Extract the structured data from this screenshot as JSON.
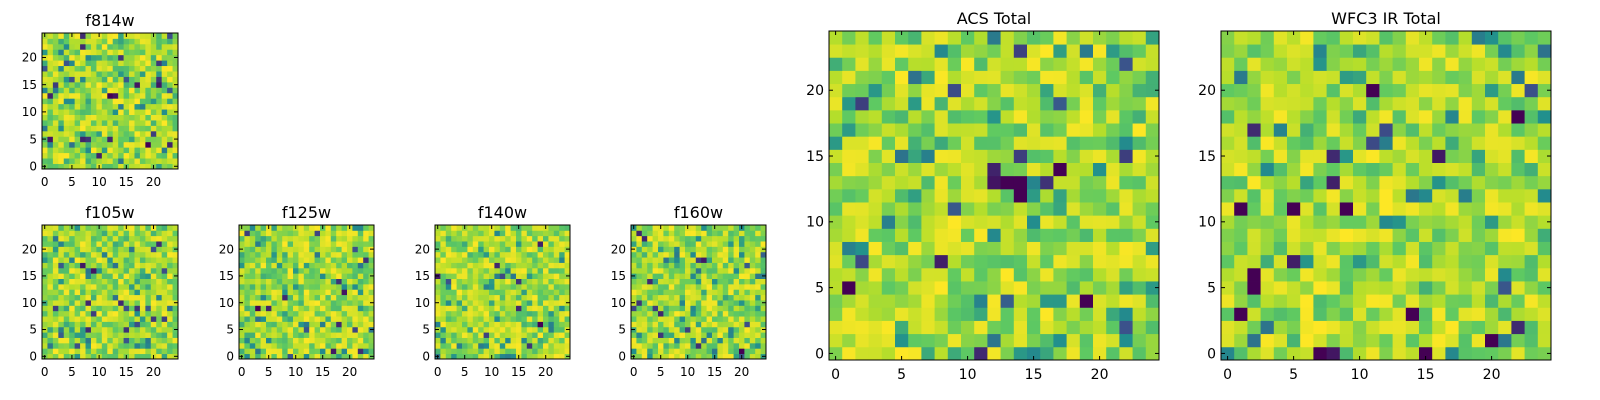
{
  "chart_data": {
    "type": "heatmap",
    "colormap": "viridis",
    "colormap_colors": [
      "#440154",
      "#3b528b",
      "#21908d",
      "#5ec962",
      "#b5de2b",
      "#fde725"
    ],
    "grid": false,
    "panels": [
      {
        "title": "f814w",
        "xlim": [
          0,
          24
        ],
        "ylim": [
          0,
          24
        ],
        "xticks": [
          0,
          5,
          10,
          15,
          20
        ],
        "yticks": [
          0,
          5,
          10,
          15,
          20
        ],
        "pixels": 25,
        "seed": 11,
        "hotspots": [
          {
            "x": 12,
            "y": 13,
            "v": 0.0
          },
          {
            "x": 13,
            "y": 13,
            "v": 0.05
          },
          {
            "x": 19,
            "y": 4,
            "v": 0.0
          },
          {
            "x": 18,
            "y": 4,
            "v": 0.95
          },
          {
            "x": 1,
            "y": 5,
            "v": 0.05
          }
        ]
      },
      {
        "title": "f105w",
        "xlim": [
          0,
          24
        ],
        "ylim": [
          0,
          24
        ],
        "xticks": [
          0,
          5,
          10,
          15,
          20
        ],
        "yticks": [
          0,
          5,
          10,
          15,
          20
        ],
        "pixels": 25,
        "seed": 23,
        "hotspots": [
          {
            "x": 9,
            "y": 16,
            "v": 0.05
          },
          {
            "x": 14,
            "y": 10,
            "v": 0.1
          },
          {
            "x": 8,
            "y": 5,
            "v": 0.1
          }
        ]
      },
      {
        "title": "f125w",
        "xlim": [
          0,
          24
        ],
        "ylim": [
          0,
          24
        ],
        "xticks": [
          0,
          5,
          10,
          15,
          20
        ],
        "yticks": [
          0,
          5,
          10,
          15,
          20
        ],
        "pixels": 25,
        "seed": 37,
        "hotspots": [
          {
            "x": 3,
            "y": 9,
            "v": 0.0
          },
          {
            "x": 8,
            "y": 11,
            "v": 0.1
          }
        ]
      },
      {
        "title": "f140w",
        "xlim": [
          0,
          24
        ],
        "ylim": [
          0,
          24
        ],
        "xticks": [
          0,
          5,
          10,
          15,
          20
        ],
        "yticks": [
          0,
          5,
          10,
          15,
          20
        ],
        "pixels": 25,
        "seed": 53,
        "hotspots": [
          {
            "x": 19,
            "y": 6,
            "v": 0.0
          },
          {
            "x": 15,
            "y": 9,
            "v": 0.1
          },
          {
            "x": 2,
            "y": 14,
            "v": 0.2
          }
        ]
      },
      {
        "title": "f160w",
        "xlim": [
          0,
          24
        ],
        "ylim": [
          0,
          24
        ],
        "xticks": [
          0,
          5,
          10,
          15,
          20
        ],
        "yticks": [
          0,
          5,
          10,
          15,
          20
        ],
        "pixels": 25,
        "seed": 71,
        "hotspots": [
          {
            "x": 20,
            "y": 1,
            "v": 0.0
          },
          {
            "x": 3,
            "y": 14,
            "v": 0.1
          },
          {
            "x": 4,
            "y": 9,
            "v": 0.15
          }
        ]
      },
      {
        "title": "ACS Total",
        "xlim": [
          0,
          24
        ],
        "ylim": [
          0,
          24
        ],
        "xticks": [
          0,
          5,
          10,
          15,
          20
        ],
        "yticks": [
          0,
          5,
          10,
          15,
          20
        ],
        "pixels": 25,
        "seed": 89,
        "hotspots": [
          {
            "x": 13,
            "y": 13,
            "v": 0.0
          },
          {
            "x": 14,
            "y": 13,
            "v": 0.0
          },
          {
            "x": 14,
            "y": 12,
            "v": 0.0
          },
          {
            "x": 12,
            "y": 13,
            "v": 0.05
          },
          {
            "x": 17,
            "y": 14,
            "v": 0.0
          },
          {
            "x": 1,
            "y": 5,
            "v": 0.0
          },
          {
            "x": 19,
            "y": 4,
            "v": 0.0
          },
          {
            "x": 18,
            "y": 4,
            "v": 0.95
          },
          {
            "x": 14,
            "y": 15,
            "v": 0.15
          },
          {
            "x": 22,
            "y": 15,
            "v": 0.15
          },
          {
            "x": 11,
            "y": 0,
            "v": 0.1
          }
        ]
      },
      {
        "title": "WFC3 IR Total",
        "xlim": [
          0,
          24
        ],
        "ylim": [
          0,
          24
        ],
        "xticks": [
          0,
          5,
          10,
          15,
          20
        ],
        "yticks": [
          0,
          5,
          10,
          15,
          20
        ],
        "pixels": 25,
        "seed": 97,
        "hotspots": [
          {
            "x": 2,
            "y": 5,
            "v": 0.0
          },
          {
            "x": 2,
            "y": 6,
            "v": 0.0
          },
          {
            "x": 1,
            "y": 11,
            "v": 0.0
          },
          {
            "x": 5,
            "y": 11,
            "v": 0.0
          },
          {
            "x": 9,
            "y": 11,
            "v": 0.0
          },
          {
            "x": 22,
            "y": 18,
            "v": 0.0
          },
          {
            "x": 7,
            "y": 0,
            "v": 0.0
          },
          {
            "x": 15,
            "y": 0,
            "v": 0.0
          },
          {
            "x": 14,
            "y": 3,
            "v": 0.0
          },
          {
            "x": 20,
            "y": 1,
            "v": 0.0
          },
          {
            "x": 1,
            "y": 3,
            "v": 0.0
          },
          {
            "x": 12,
            "y": 11,
            "v": 1.0
          },
          {
            "x": 12,
            "y": 12,
            "v": 1.0
          },
          {
            "x": 6,
            "y": 4,
            "v": 1.0
          },
          {
            "x": 7,
            "y": 2,
            "v": 1.0
          },
          {
            "x": 11,
            "y": 20,
            "v": 0.0
          },
          {
            "x": 2,
            "y": 17,
            "v": 0.1
          },
          {
            "x": 8,
            "y": 15,
            "v": 0.1
          }
        ]
      }
    ]
  }
}
